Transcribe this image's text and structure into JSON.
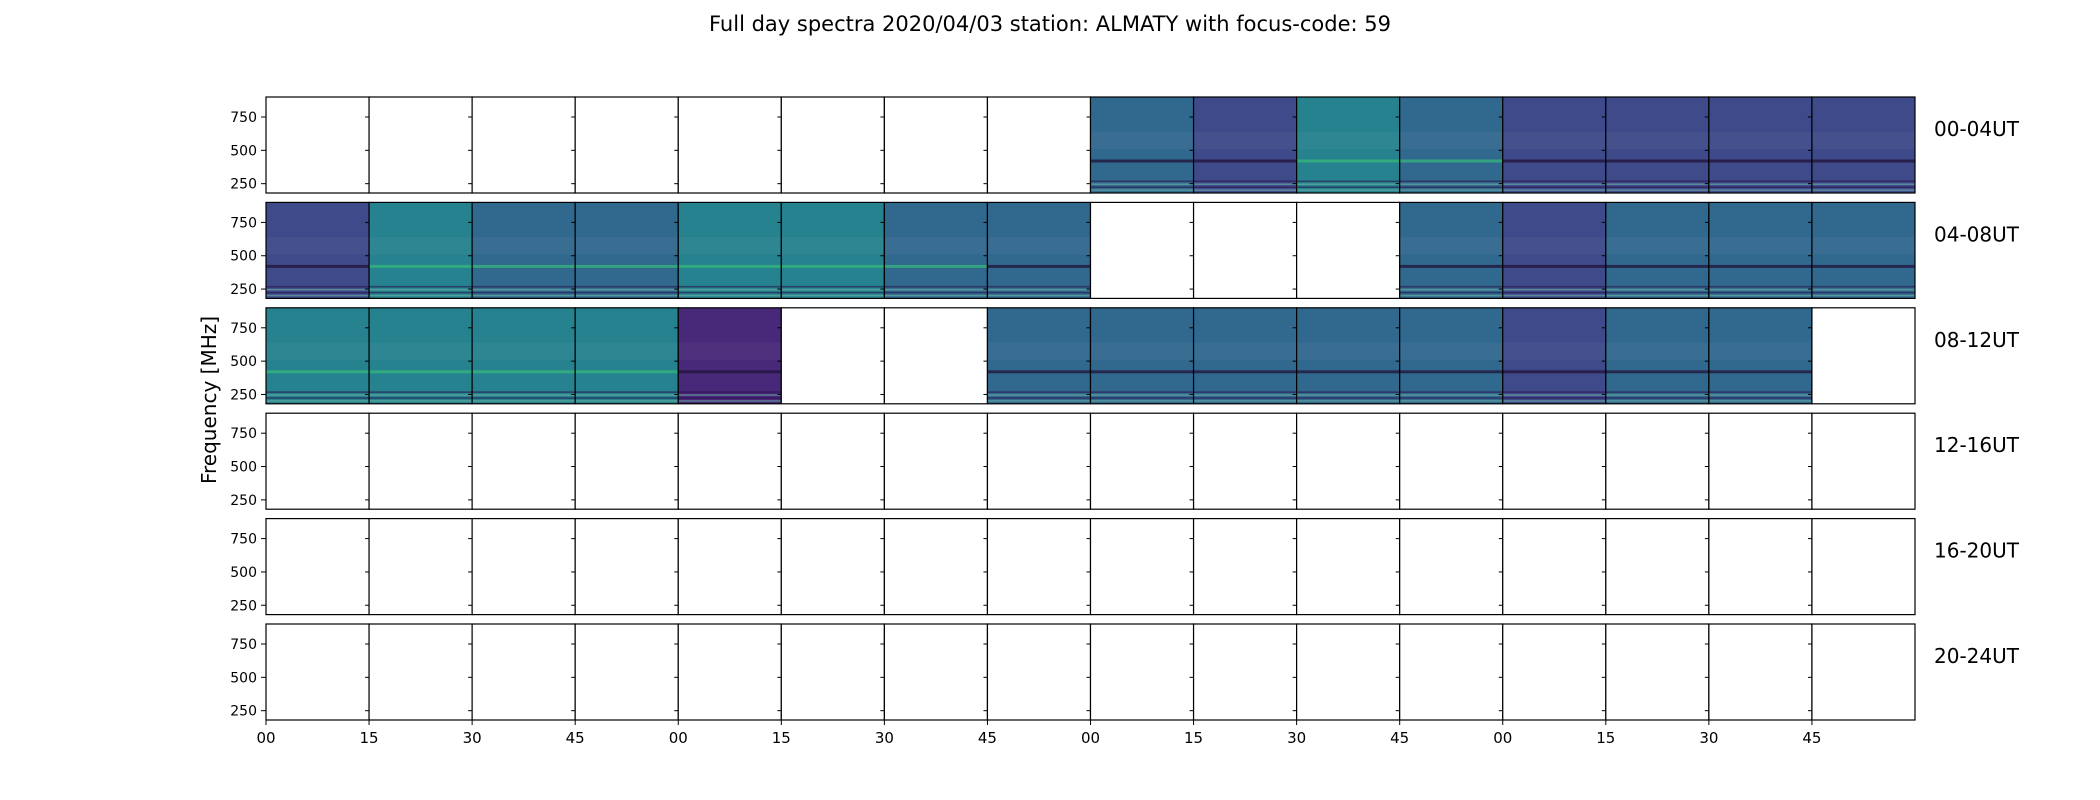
{
  "chart_data": {
    "type": "heatmap",
    "title": "Full day spectra 2020/04/03 station: ALMATY with focus-code: 59",
    "ylabel": "Frequency [MHz]",
    "xlabel": "",
    "ylim": [
      180,
      900
    ],
    "y_ticks": [
      250,
      500,
      750
    ],
    "x_tick_labels": [
      "00",
      "15",
      "30",
      "45",
      "00",
      "15",
      "30",
      "45",
      "00",
      "15",
      "30",
      "45",
      "00",
      "15",
      "30",
      "45"
    ],
    "panel_minutes": 15,
    "panels_per_row": 16,
    "grid": false,
    "colormap": [
      "#440154",
      "#482878",
      "#3e4a89",
      "#31688e",
      "#26828e",
      "#1f9e89",
      "#35b779"
    ],
    "rows": [
      {
        "label": "00-04UT",
        "panels": [
          0,
          0,
          0,
          0,
          0,
          0,
          0,
          0,
          1,
          1,
          1,
          1,
          1,
          1,
          1,
          1
        ],
        "level": [
          0,
          0,
          0,
          0,
          0,
          0,
          0,
          0,
          0.45,
          0.35,
          0.62,
          0.58,
          0.38,
          0.3,
          0.4,
          0.4
        ]
      },
      {
        "label": "04-08UT",
        "panels": [
          1,
          1,
          1,
          1,
          1,
          1,
          1,
          1,
          0,
          0,
          0,
          1,
          1,
          1,
          1,
          1
        ],
        "level": [
          0.28,
          0.62,
          0.58,
          0.55,
          0.6,
          0.6,
          0.55,
          0.5,
          0,
          0,
          0,
          0.45,
          0.4,
          0.5,
          0.45,
          0.5
        ]
      },
      {
        "label": "08-12UT",
        "panels": [
          1,
          1,
          1,
          1,
          1,
          0,
          0,
          1,
          1,
          1,
          1,
          1,
          1,
          1,
          1,
          0
        ],
        "level": [
          0.65,
          0.62,
          0.62,
          0.6,
          0.2,
          0,
          0,
          0.42,
          0.42,
          0.42,
          0.45,
          0.42,
          0.4,
          0.42,
          0.42,
          0
        ]
      },
      {
        "label": "12-16UT",
        "panels": [
          0,
          0,
          0,
          0,
          0,
          0,
          0,
          0,
          0,
          0,
          0,
          0,
          0,
          0,
          0,
          0
        ],
        "level": [
          0,
          0,
          0,
          0,
          0,
          0,
          0,
          0,
          0,
          0,
          0,
          0,
          0,
          0,
          0,
          0
        ]
      },
      {
        "label": "16-20UT",
        "panels": [
          0,
          0,
          0,
          0,
          0,
          0,
          0,
          0,
          0,
          0,
          0,
          0,
          0,
          0,
          0,
          0
        ],
        "level": [
          0,
          0,
          0,
          0,
          0,
          0,
          0,
          0,
          0,
          0,
          0,
          0,
          0,
          0,
          0,
          0
        ]
      },
      {
        "label": "20-24UT",
        "panels": [
          0,
          0,
          0,
          0,
          0,
          0,
          0,
          0,
          0,
          0,
          0,
          0,
          0,
          0,
          0,
          0
        ],
        "level": [
          0,
          0,
          0,
          0,
          0,
          0,
          0,
          0,
          0,
          0,
          0,
          0,
          0,
          0,
          0,
          0
        ]
      }
    ]
  }
}
